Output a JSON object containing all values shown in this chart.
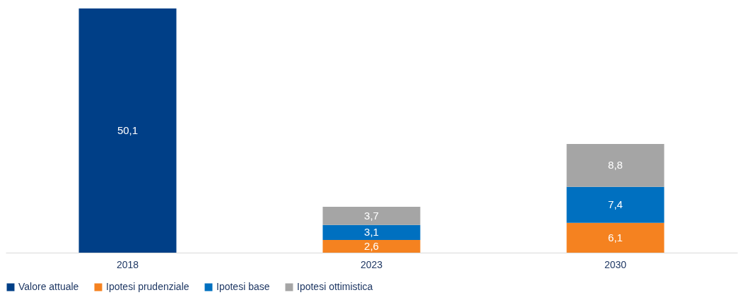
{
  "chart_data": {
    "type": "bar",
    "stacked": true,
    "categories": [
      "2018",
      "2023",
      "2030"
    ],
    "legend": "bottom",
    "series": [
      {
        "name": "Valore attuale",
        "color": "#003f87",
        "values": [
          50.1,
          null,
          null
        ],
        "value_labels": [
          "50,1",
          null,
          null
        ]
      },
      {
        "name": "Ipotesi prudenziale",
        "color": "#f58220",
        "values": [
          null,
          2.6,
          6.1
        ],
        "value_labels": [
          null,
          "2,6",
          "6,1"
        ]
      },
      {
        "name": "Ipotesi base",
        "color": "#0070c0",
        "values": [
          null,
          3.1,
          7.4
        ],
        "value_labels": [
          null,
          "3,1",
          "7,4"
        ]
      },
      {
        "name": "Ipotesi ottimistica",
        "color": "#a5a5a5",
        "values": [
          null,
          3.7,
          8.8
        ],
        "value_labels": [
          null,
          "3,7",
          "8,8"
        ]
      }
    ]
  }
}
